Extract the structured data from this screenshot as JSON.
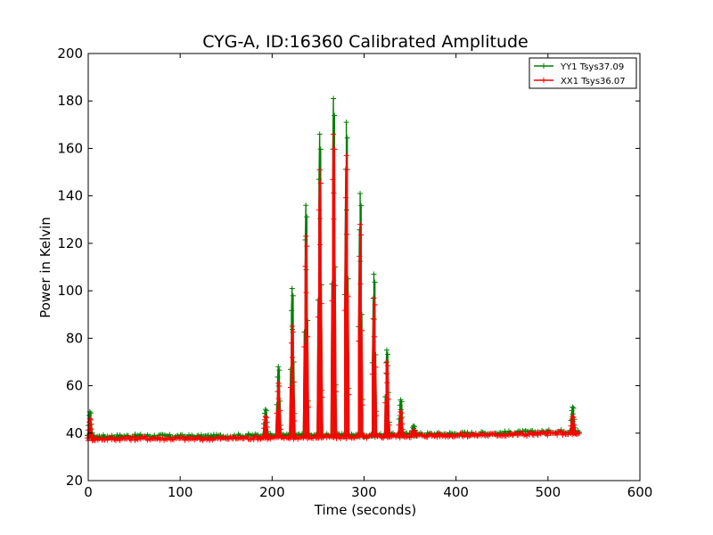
{
  "chart_data": {
    "type": "line",
    "title": "CYG-A, ID:16360 Calibrated Amplitude",
    "xlabel": "Time (seconds)",
    "ylabel": "Power in Kelvin",
    "xlim": [
      0,
      600
    ],
    "ylim": [
      20,
      200
    ],
    "xticks": [
      0,
      100,
      200,
      300,
      400,
      500,
      600
    ],
    "yticks": [
      20,
      40,
      60,
      80,
      100,
      120,
      140,
      160,
      180,
      200
    ],
    "grid": false,
    "legend_position": "top-right",
    "series": [
      {
        "name": "YY1 Tsys37.09",
        "color": "#008000",
        "peaks": [
          {
            "x": 2,
            "y": 49
          },
          {
            "x": 193,
            "y": 50
          },
          {
            "x": 207,
            "y": 68
          },
          {
            "x": 222,
            "y": 101
          },
          {
            "x": 237,
            "y": 136
          },
          {
            "x": 252,
            "y": 166
          },
          {
            "x": 267,
            "y": 181
          },
          {
            "x": 281,
            "y": 171
          },
          {
            "x": 296,
            "y": 141
          },
          {
            "x": 311,
            "y": 107
          },
          {
            "x": 325,
            "y": 75
          },
          {
            "x": 340,
            "y": 54
          },
          {
            "x": 354,
            "y": 43
          },
          {
            "x": 527,
            "y": 51
          }
        ],
        "baseline": [
          {
            "x": 0,
            "y": 38.5
          },
          {
            "x": 60,
            "y": 38.8
          },
          {
            "x": 120,
            "y": 38.5
          },
          {
            "x": 180,
            "y": 39
          },
          {
            "x": 300,
            "y": 39
          },
          {
            "x": 360,
            "y": 39.5
          },
          {
            "x": 420,
            "y": 39.8
          },
          {
            "x": 480,
            "y": 40.3
          },
          {
            "x": 520,
            "y": 40.8
          },
          {
            "x": 535,
            "y": 40.5
          }
        ]
      },
      {
        "name": "XX1 Tsys36.07",
        "color": "#ff0000",
        "peaks": [
          {
            "x": 2,
            "y": 46
          },
          {
            "x": 193,
            "y": 47
          },
          {
            "x": 207,
            "y": 61
          },
          {
            "x": 222,
            "y": 85
          },
          {
            "x": 237,
            "y": 123
          },
          {
            "x": 252,
            "y": 151
          },
          {
            "x": 267,
            "y": 166
          },
          {
            "x": 281,
            "y": 157
          },
          {
            "x": 296,
            "y": 128
          },
          {
            "x": 311,
            "y": 97
          },
          {
            "x": 325,
            "y": 70
          },
          {
            "x": 340,
            "y": 49
          },
          {
            "x": 354,
            "y": 41
          },
          {
            "x": 527,
            "y": 47
          }
        ],
        "baseline": [
          {
            "x": 0,
            "y": 37.5
          },
          {
            "x": 60,
            "y": 37.8
          },
          {
            "x": 120,
            "y": 37.6
          },
          {
            "x": 180,
            "y": 38
          },
          {
            "x": 300,
            "y": 38.5
          },
          {
            "x": 360,
            "y": 39
          },
          {
            "x": 420,
            "y": 39.2
          },
          {
            "x": 480,
            "y": 39.6
          },
          {
            "x": 520,
            "y": 40
          },
          {
            "x": 535,
            "y": 39.5
          }
        ]
      }
    ]
  }
}
